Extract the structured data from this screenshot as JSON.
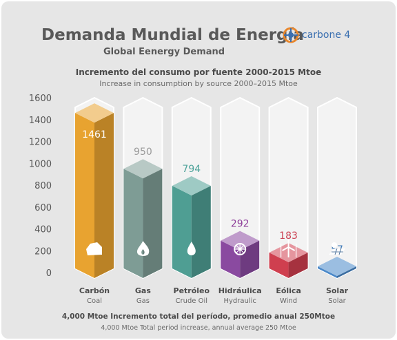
{
  "header": {
    "title": "Demanda Mundial de Energía",
    "subtitle": "Global Eenergy Demand",
    "brand": "carbone 4"
  },
  "chart_data": {
    "type": "bar",
    "title": "Incremento del consumo por fuente 2000-2015 Mtoe",
    "subtitle": "Increase in consumption by source 2000–2015 Mtoe",
    "categories": [
      "Carbón",
      "Gas",
      "Petróleo",
      "Hidráulica",
      "Eólica",
      "Solar"
    ],
    "categories_en": [
      "Coal",
      "Gas",
      "Crude Oil",
      "Hydraulic",
      "Wind",
      "Solar"
    ],
    "values": [
      1461,
      950,
      794,
      292,
      183,
      57
    ],
    "value_labels": [
      "1461",
      "950",
      "794",
      "292",
      "183",
      "57"
    ],
    "label_colors": [
      "#ffffff",
      "#9a9a9a",
      "#4da39a",
      "#8e3f9a",
      "#cc4455",
      "#3d7ab8"
    ],
    "bar_colors": [
      "#e8a330",
      "#7e9c95",
      "#4f9e93",
      "#8a4aa0",
      "#cf3f4f",
      "#4a88c8"
    ],
    "icons": [
      "coal-icon",
      "flame-icon",
      "oil-drop-icon",
      "hydro-icon",
      "wind-turbine-icon",
      "solar-panel-icon"
    ],
    "yticks": [
      "1600",
      "1400",
      "1200",
      "1000",
      "800",
      "600",
      "400",
      "200",
      "0"
    ],
    "ylim": [
      0,
      1600
    ],
    "footer": "4,000 Mtoe Incremento total del período, promedio anual 250Mtoe",
    "footer_en": "4,000 Mtoe Total period increase, annual average 250 Mtoe"
  }
}
